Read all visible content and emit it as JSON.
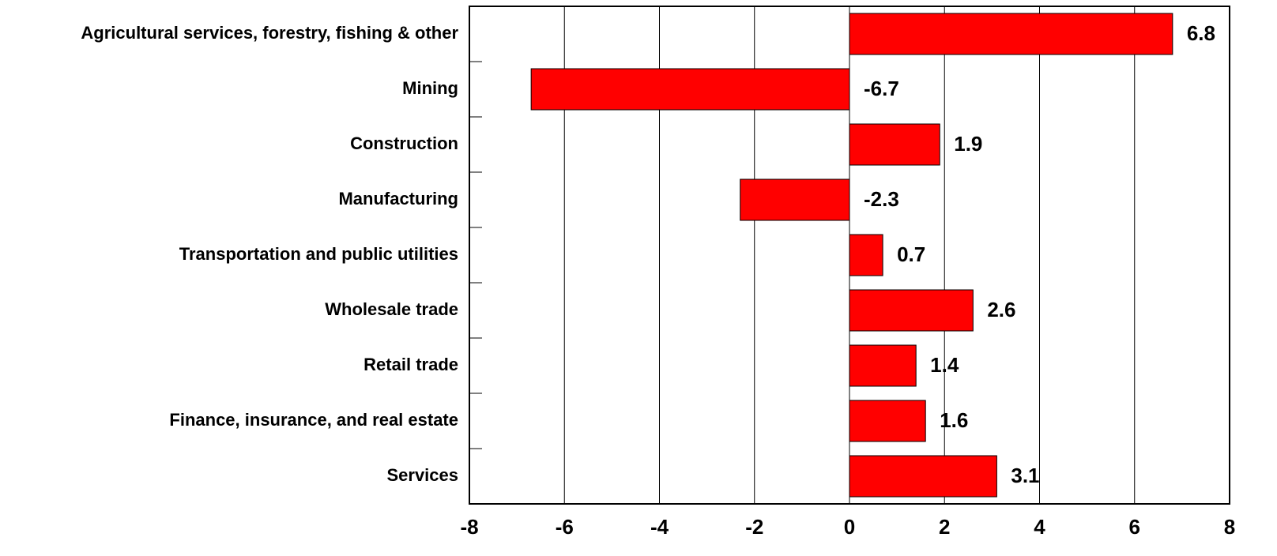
{
  "chart_data": {
    "type": "bar",
    "orientation": "horizontal",
    "categories": [
      "Agricultural services, forestry, fishing & other",
      "Mining",
      "Construction",
      "Manufacturing",
      "Transportation and public utilities",
      "Wholesale trade",
      "Retail trade",
      "Finance, insurance, and real estate",
      "Services"
    ],
    "values": [
      6.8,
      -6.7,
      1.9,
      -2.3,
      0.7,
      2.6,
      1.4,
      1.6,
      3.1
    ],
    "color": "#ff0000",
    "xlim": [
      -8,
      8
    ],
    "xticks": [
      -8,
      -6,
      -4,
      -2,
      0,
      2,
      4,
      6,
      8
    ],
    "grid": true
  }
}
